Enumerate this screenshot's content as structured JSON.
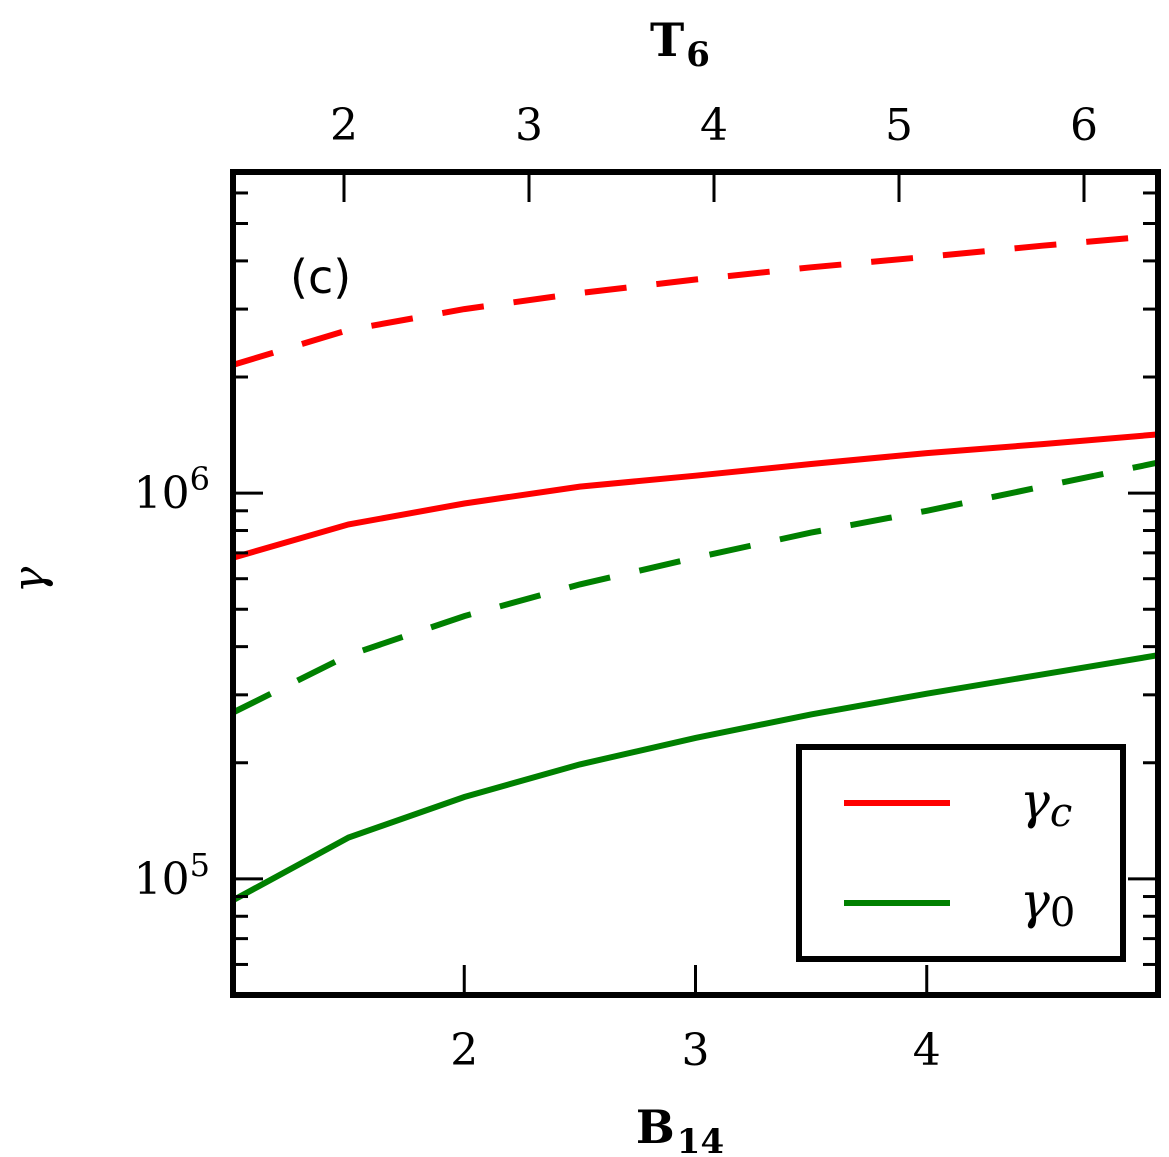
{
  "chart_data": {
    "type": "line",
    "panel_label": "(c)",
    "xlabel": "B",
    "xlabel_sub": "14",
    "top_xlabel": "T",
    "top_xlabel_sub": "6",
    "ylabel": "γ",
    "x_scale": "linear",
    "xlim": [
      1.0,
      5.0
    ],
    "x_ticks": [
      2,
      3,
      4
    ],
    "x_tick_labels": [
      "2",
      "3",
      "4"
    ],
    "top_xlim": [
      1.4,
      6.4
    ],
    "top_x_ticks": [
      2,
      3,
      4,
      5,
      6
    ],
    "top_x_tick_labels": [
      "2",
      "3",
      "4",
      "5",
      "6"
    ],
    "y_scale": "log",
    "ylim": [
      50000,
      6800000
    ],
    "y_major_ticks": [
      {
        "value": 100000,
        "base": "10",
        "exp": "5"
      },
      {
        "value": 1000000,
        "base": "10",
        "exp": "6"
      }
    ],
    "x": [
      1.0,
      1.5,
      2.0,
      2.5,
      3.0,
      3.5,
      4.0,
      4.5,
      5.0
    ],
    "series": [
      {
        "name": "γc",
        "legend_base": "γ",
        "legend_sub": "c",
        "color": "#ff0000",
        "style": "solid",
        "values": [
          680000,
          830000,
          940000,
          1040000,
          1110000,
          1190000,
          1270000,
          1340000,
          1420000
        ]
      },
      {
        "name": "γ0",
        "legend_base": "γ",
        "legend_sub": "0",
        "color": "#008000",
        "style": "solid",
        "values": [
          88000,
          128000,
          163000,
          198000,
          232000,
          267000,
          302000,
          339000,
          380000
        ]
      },
      {
        "legend_base": "",
        "legend_sub": "",
        "color": "#ff0000",
        "style": "dashed",
        "in_legend": false,
        "values": [
          2150000,
          2650000,
          3000000,
          3300000,
          3580000,
          3850000,
          4100000,
          4380000,
          4650000
        ]
      },
      {
        "legend_base": "",
        "legend_sub": "",
        "color": "#008000",
        "style": "dashed",
        "in_legend": false,
        "values": [
          270000,
          380000,
          480000,
          580000,
          680000,
          790000,
          900000,
          1040000,
          1200000
        ]
      }
    ],
    "legend_position": "lower-right",
    "grid": false
  }
}
